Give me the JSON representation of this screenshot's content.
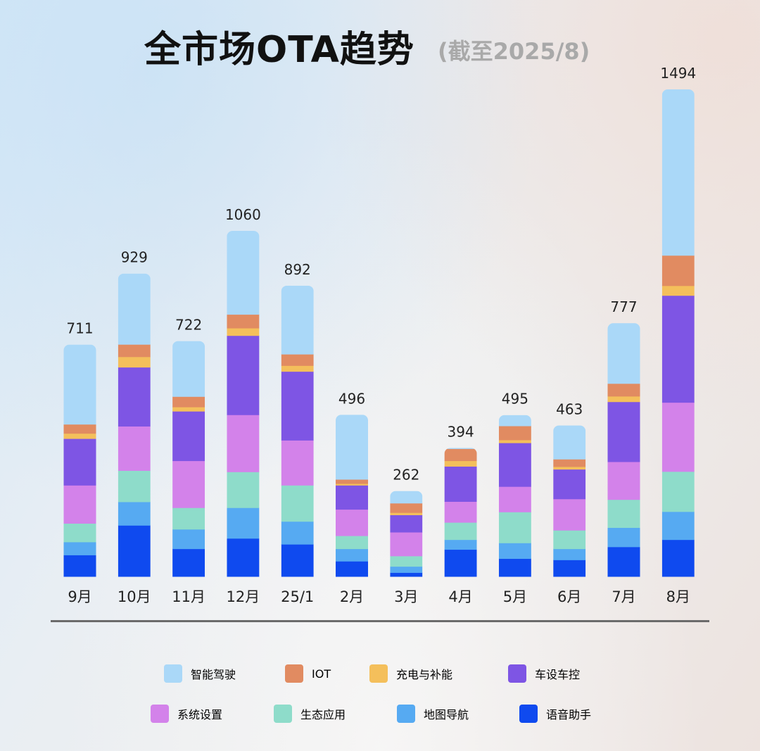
{
  "header": {
    "title": "全市场OTA趋势",
    "subtitle": "(截至2025/8)"
  },
  "chart_data": {
    "type": "bar",
    "stacked": true,
    "categories": [
      "9月",
      "10月",
      "11月",
      "12月",
      "25/1",
      "2月",
      "3月",
      "4月",
      "5月",
      "6月",
      "7月",
      "8月"
    ],
    "totals": [
      711,
      929,
      722,
      1060,
      892,
      496,
      262,
      394,
      495,
      463,
      777,
      1494
    ],
    "series": [
      {
        "name": "语音助手",
        "color": "#0f4aef",
        "values": [
          66,
          157,
          85,
          117,
          99,
          47,
          12,
          83,
          55,
          51,
          91,
          113
        ]
      },
      {
        "name": "地图导航",
        "color": "#56aaf2",
        "values": [
          40,
          72,
          60,
          94,
          70,
          38,
          19,
          30,
          48,
          34,
          59,
          86
        ]
      },
      {
        "name": "生态应用",
        "color": "#8edcca",
        "values": [
          57,
          96,
          66,
          110,
          111,
          40,
          32,
          53,
          95,
          57,
          86,
          123
        ]
      },
      {
        "name": "系统设置",
        "color": "#d382ea",
        "values": [
          117,
          136,
          144,
          175,
          138,
          81,
          73,
          64,
          78,
          96,
          116,
          212
        ]
      },
      {
        "name": "车设车控",
        "color": "#7e55e4",
        "values": [
          143,
          181,
          152,
          243,
          211,
          74,
          53,
          108,
          134,
          91,
          184,
          328
        ]
      },
      {
        "name": "充电与补能",
        "color": "#f4bf5b",
        "values": [
          16,
          32,
          13,
          23,
          18,
          5,
          7,
          17,
          9,
          8,
          17,
          30
        ]
      },
      {
        "name": "IOT",
        "color": "#e18b61",
        "values": [
          28,
          38,
          32,
          42,
          35,
          13,
          29,
          37,
          43,
          23,
          39,
          93
        ]
      },
      {
        "name": "智能驾驶",
        "color": "#aad8f8",
        "values": [
          244,
          217,
          170,
          256,
          210,
          198,
          37,
          2,
          33,
          103,
          185,
          509
        ]
      }
    ],
    "legend_position": "bottom",
    "grid": false
  },
  "legend": {
    "items": [
      {
        "label": "智能驾驶",
        "color": "#aad8f8"
      },
      {
        "label": "IOT",
        "color": "#e18b61"
      },
      {
        "label": "充电与补能",
        "color": "#f4bf5b"
      },
      {
        "label": "车设车控",
        "color": "#7e55e4"
      },
      {
        "label": "系统设置",
        "color": "#d382ea"
      },
      {
        "label": "生态应用",
        "color": "#8edcca"
      },
      {
        "label": "地图导航",
        "color": "#56aaf2"
      },
      {
        "label": "语音助手",
        "color": "#0f4aef"
      }
    ]
  }
}
